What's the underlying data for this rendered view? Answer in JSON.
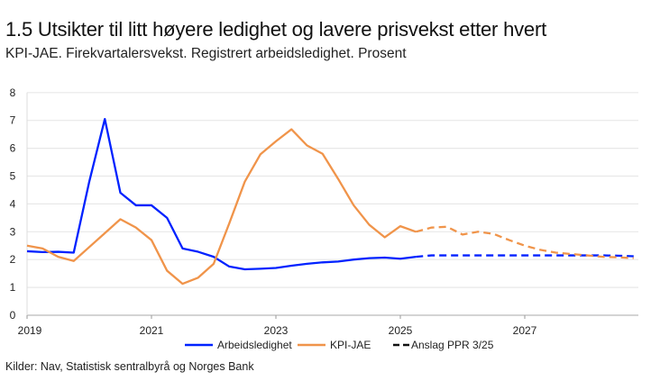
{
  "title": "1.5 Utsikter til litt høyere ledighet og lavere prisvekst etter hvert",
  "subtitle": "KPI-JAE. Firekvartalersvekst. Registrert arbeidsledighet. Prosent",
  "source": "Kilder: Nav, Statistisk sentralbyrå og Norges Bank",
  "chart_data": {
    "type": "line",
    "x_unit": "quarter",
    "x_start": "2019 Q1",
    "x_ticks": [
      "2019",
      "2021",
      "2023",
      "2025",
      "2027"
    ],
    "ylim": [
      0,
      8
    ],
    "y_ticks": [
      0,
      1,
      2,
      3,
      4,
      5,
      6,
      7,
      8
    ],
    "grid": true,
    "legend_placement": "bottom",
    "series": [
      {
        "name": "Arbeidsledighet",
        "color": "#0022ff",
        "values": [
          2.3,
          2.27,
          2.28,
          2.25,
          4.8,
          7.05,
          4.4,
          3.95,
          3.95,
          3.5,
          2.4,
          2.28,
          2.1,
          1.75,
          1.65,
          1.67,
          1.7,
          1.78,
          1.85,
          1.9,
          1.93,
          2.0,
          2.05,
          2.07,
          2.03,
          2.1,
          2.15,
          2.15,
          2.15,
          2.15,
          2.15,
          2.15,
          2.15,
          2.15,
          2.15,
          2.15,
          2.15,
          2.15,
          2.14,
          2.12
        ],
        "actual_until_index": 25
      },
      {
        "name": "KPI-JAE",
        "color": "#f0944a",
        "values": [
          2.5,
          2.4,
          2.1,
          1.95,
          2.45,
          2.95,
          3.45,
          3.15,
          2.7,
          1.6,
          1.13,
          1.35,
          1.85,
          3.3,
          4.8,
          5.78,
          6.25,
          6.68,
          6.1,
          5.8,
          4.9,
          3.95,
          3.25,
          2.8,
          3.2,
          3.0,
          3.15,
          3.18,
          2.9,
          3.0,
          2.92,
          2.7,
          2.5,
          2.35,
          2.25,
          2.2,
          2.15,
          2.1,
          2.08,
          2.05
        ],
        "actual_until_index": 25
      }
    ],
    "legend": [
      "Arbeidsledighet",
      "KPI-JAE",
      "Anslag PPR 3/25"
    ]
  }
}
